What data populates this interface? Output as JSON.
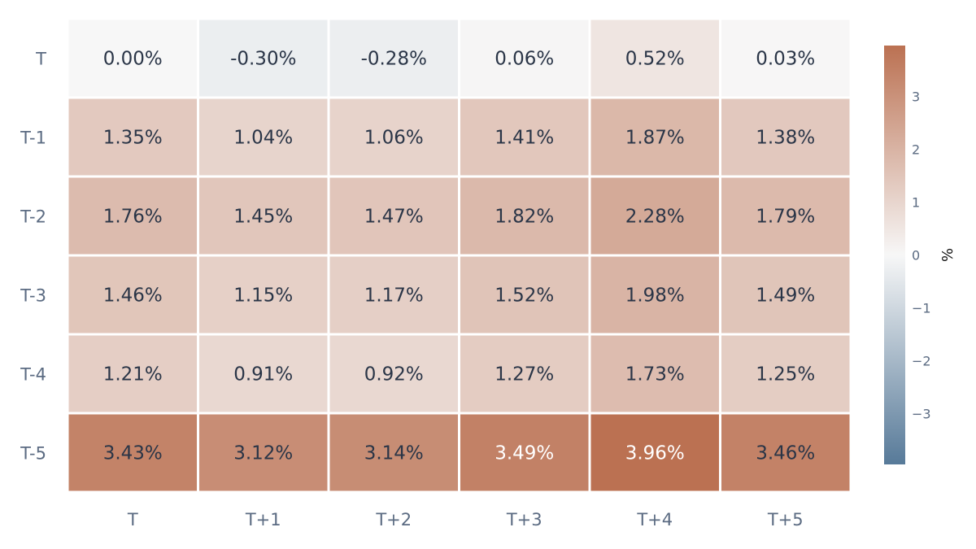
{
  "chart_data": {
    "type": "heatmap",
    "rows": [
      "T",
      "T-1",
      "T-2",
      "T-3",
      "T-4",
      "T-5"
    ],
    "columns": [
      "T",
      "T+1",
      "T+2",
      "T+3",
      "T+4",
      "T+5"
    ],
    "values": [
      [
        0.0,
        -0.3,
        -0.28,
        0.06,
        0.52,
        0.03
      ],
      [
        1.35,
        1.04,
        1.06,
        1.41,
        1.87,
        1.38
      ],
      [
        1.76,
        1.45,
        1.47,
        1.82,
        2.28,
        1.79
      ],
      [
        1.46,
        1.15,
        1.17,
        1.52,
        1.98,
        1.49
      ],
      [
        1.21,
        0.91,
        0.92,
        1.27,
        1.73,
        1.25
      ],
      [
        3.43,
        3.12,
        3.14,
        3.49,
        3.96,
        3.46
      ]
    ],
    "value_labels": [
      [
        "0.00%",
        "-0.30%",
        "-0.28%",
        "0.06%",
        "0.52%",
        "0.03%"
      ],
      [
        "1.35%",
        "1.04%",
        "1.06%",
        "1.41%",
        "1.87%",
        "1.38%"
      ],
      [
        "1.76%",
        "1.45%",
        "1.47%",
        "1.82%",
        "2.28%",
        "1.79%"
      ],
      [
        "1.46%",
        "1.15%",
        "1.17%",
        "1.52%",
        "1.98%",
        "1.49%"
      ],
      [
        "1.21%",
        "0.91%",
        "0.92%",
        "1.27%",
        "1.73%",
        "1.25%"
      ],
      [
        "3.43%",
        "3.12%",
        "3.14%",
        "3.49%",
        "3.96%",
        "3.46%"
      ]
    ],
    "colorbar": {
      "label": "%",
      "range": [
        -3.96,
        3.96
      ],
      "ticks": [
        3,
        2,
        1,
        0,
        -1,
        -2,
        -3
      ],
      "tick_labels": [
        "3",
        "2",
        "1",
        "0",
        "−1",
        "−2",
        "−3"
      ],
      "colors": {
        "negative": "#577a99",
        "neutral": "#f7f7f7",
        "positive": "#bb7152"
      }
    },
    "text_colors": {
      "dark": "#2a3547",
      "light": "#ffffff"
    },
    "light_text_threshold": 3.47
  }
}
